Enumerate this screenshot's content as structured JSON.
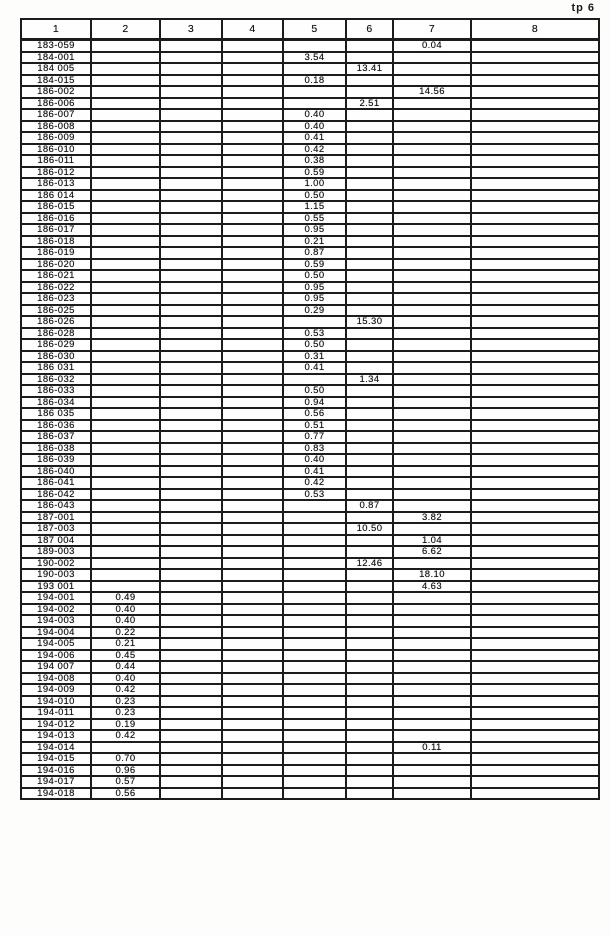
{
  "page_label": "tp 6",
  "table": {
    "headers": [
      "1",
      "2",
      "3",
      "4",
      "5",
      "6",
      "7",
      "8"
    ],
    "rows": [
      [
        "183-059",
        "",
        "",
        "",
        "",
        "",
        "0.04",
        ""
      ],
      [
        "184-001",
        "",
        "",
        "",
        "3.54",
        "",
        "",
        ""
      ],
      [
        "184 005",
        "",
        "",
        "",
        "",
        "13.41",
        "",
        ""
      ],
      [
        "184-015",
        "",
        "",
        "",
        "0.18",
        "",
        "",
        ""
      ],
      [
        "186-002",
        "",
        "",
        "",
        "",
        "",
        "14.56",
        ""
      ],
      [
        "186-006",
        "",
        "",
        "",
        "",
        "2.51",
        "",
        ""
      ],
      [
        "186-007",
        "",
        "",
        "",
        "0.40",
        "",
        "",
        ""
      ],
      [
        "186-008",
        "",
        "",
        "",
        "0.40",
        "",
        "",
        ""
      ],
      [
        "186-009",
        "",
        "",
        "",
        "0.41",
        "",
        "",
        ""
      ],
      [
        "186-010",
        "",
        "",
        "",
        "0.42",
        "",
        "",
        ""
      ],
      [
        "186-011",
        "",
        "",
        "",
        "0.38",
        "",
        "",
        ""
      ],
      [
        "186-012",
        "",
        "",
        "",
        "0.59",
        "",
        "",
        ""
      ],
      [
        "186-013",
        "",
        "",
        "",
        "1.00",
        "",
        "",
        ""
      ],
      [
        "186 014",
        "",
        "",
        "",
        "0.50",
        "",
        "",
        ""
      ],
      [
        "186-015",
        "",
        "",
        "",
        "1.15",
        "",
        "",
        ""
      ],
      [
        "186-016",
        "",
        "",
        "",
        "0.55",
        "",
        "",
        ""
      ],
      [
        "186-017",
        "",
        "",
        "",
        "0.95",
        "",
        "",
        ""
      ],
      [
        "186-018",
        "",
        "",
        "",
        "0.21",
        "",
        "",
        ""
      ],
      [
        "186-019",
        "",
        "",
        "",
        "0.87",
        "",
        "",
        ""
      ],
      [
        "186-020",
        "",
        "",
        "",
        "0.59",
        "",
        "",
        ""
      ],
      [
        "186-021",
        "",
        "",
        "",
        "0.50",
        "",
        "",
        ""
      ],
      [
        "186-022",
        "",
        "",
        "",
        "0.95",
        "",
        "",
        ""
      ],
      [
        "186-023",
        "",
        "",
        "",
        "0.95",
        "",
        "",
        ""
      ],
      [
        "186-025",
        "",
        "",
        "",
        "0.29",
        "",
        "",
        ""
      ],
      [
        "186-026",
        "",
        "",
        "",
        "",
        "15.30",
        "",
        ""
      ],
      [
        "186-028",
        "",
        "",
        "",
        "0.53",
        "",
        "",
        ""
      ],
      [
        "186-029",
        "",
        "",
        "",
        "0.50",
        "",
        "",
        ""
      ],
      [
        "186-030",
        "",
        "",
        "",
        "0.31",
        "",
        "",
        ""
      ],
      [
        "186 031",
        "",
        "",
        "",
        "0.41",
        "",
        "",
        ""
      ],
      [
        "186-032",
        "",
        "",
        "",
        "",
        "1.34",
        "",
        ""
      ],
      [
        "186-033",
        "",
        "",
        "",
        "0.50",
        "",
        "",
        ""
      ],
      [
        "186-034",
        "",
        "",
        "",
        "0.94",
        "",
        "",
        ""
      ],
      [
        "186 035",
        "",
        "",
        "",
        "0.56",
        "",
        "",
        ""
      ],
      [
        "186-036",
        "",
        "",
        "",
        "0.51",
        "",
        "",
        ""
      ],
      [
        "186-037",
        "",
        "",
        "",
        "0.77",
        "",
        "",
        ""
      ],
      [
        "186-038",
        "",
        "",
        "",
        "0.83",
        "",
        "",
        ""
      ],
      [
        "186-039",
        "",
        "",
        "",
        "0.40",
        "",
        "",
        ""
      ],
      [
        "186-040",
        "",
        "",
        "",
        "0.41",
        "",
        "",
        ""
      ],
      [
        "186-041",
        "",
        "",
        "",
        "0.42",
        "",
        "",
        ""
      ],
      [
        "186-042",
        "",
        "",
        "",
        "0.53",
        "",
        "",
        ""
      ],
      [
        "186-043",
        "",
        "",
        "",
        "",
        "0.87",
        "",
        ""
      ],
      [
        "187-001",
        "",
        "",
        "",
        "",
        "",
        "3.82",
        ""
      ],
      [
        "187-003",
        "",
        "",
        "",
        "",
        "10.50",
        "",
        ""
      ],
      [
        "187 004",
        "",
        "",
        "",
        "",
        "",
        "1.04",
        ""
      ],
      [
        "189-003",
        "",
        "",
        "",
        "",
        "",
        "6.62",
        ""
      ],
      [
        "190-002",
        "",
        "",
        "",
        "",
        "12.46",
        "",
        ""
      ],
      [
        "190-003",
        "",
        "",
        "",
        "",
        "",
        "18.10",
        ""
      ],
      [
        "193 001",
        "",
        "",
        "",
        "",
        "",
        "4.63",
        ""
      ],
      [
        "194-001",
        "0.49",
        "",
        "",
        "",
        "",
        "",
        ""
      ],
      [
        "194-002",
        "0.40",
        "",
        "",
        "",
        "",
        "",
        ""
      ],
      [
        "194-003",
        "0.40",
        "",
        "",
        "",
        "",
        "",
        ""
      ],
      [
        "194-004",
        "0.22",
        "",
        "",
        "",
        "",
        "",
        ""
      ],
      [
        "194-005",
        "0.21",
        "",
        "",
        "",
        "",
        "",
        ""
      ],
      [
        "194-006",
        "0.45",
        "",
        "",
        "",
        "",
        "",
        ""
      ],
      [
        "194 007",
        "0.44",
        "",
        "",
        "",
        "",
        "",
        ""
      ],
      [
        "194-008",
        "0.40",
        "",
        "",
        "",
        "",
        "",
        ""
      ],
      [
        "194-009",
        "0.42",
        "",
        "",
        "",
        "",
        "",
        ""
      ],
      [
        "194-010",
        "0.23",
        "",
        "",
        "",
        "",
        "",
        ""
      ],
      [
        "194-011",
        "0.23",
        "",
        "",
        "",
        "",
        "",
        ""
      ],
      [
        "194-012",
        "0.19",
        "",
        "",
        "",
        "",
        "",
        ""
      ],
      [
        "194-013",
        "0.42",
        "",
        "",
        "",
        "",
        "",
        ""
      ],
      [
        "194-014",
        "",
        "",
        "",
        "",
        "",
        "0.11",
        ""
      ],
      [
        "194-015",
        "0.70",
        "",
        "",
        "",
        "",
        "",
        ""
      ],
      [
        "194-016",
        "0.96",
        "",
        "",
        "",
        "",
        "",
        ""
      ],
      [
        "194-017",
        "0.57",
        "",
        "",
        "",
        "",
        "",
        ""
      ],
      [
        "194-018",
        "0.56",
        "",
        "",
        "",
        "",
        "",
        ""
      ]
    ]
  }
}
